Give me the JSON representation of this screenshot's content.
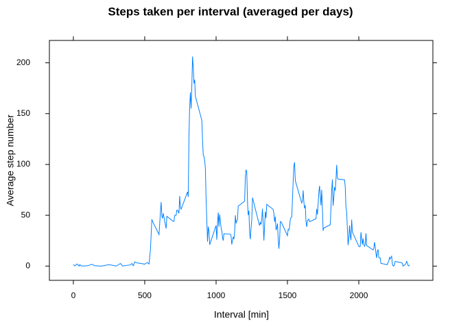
{
  "chart_data": {
    "type": "line",
    "title": "Steps taken per interval (averaged per days)",
    "x_label": "Interval [min]",
    "y_label": "Average step number",
    "color": "#0080ff",
    "x": [
      0,
      10,
      25,
      40,
      45,
      55,
      100,
      130,
      150,
      200,
      250,
      300,
      330,
      345,
      400,
      410,
      420,
      430,
      440,
      450,
      500,
      510,
      520,
      530,
      540,
      550,
      555,
      600,
      610,
      615,
      620,
      625,
      630,
      640,
      650,
      655,
      700,
      705,
      710,
      720,
      725,
      730,
      740,
      745,
      750,
      755,
      800,
      805,
      810,
      815,
      820,
      825,
      830,
      835,
      840,
      845,
      850,
      855,
      900,
      905,
      910,
      915,
      920,
      925,
      930,
      935,
      940,
      945,
      950,
      955,
      1000,
      1005,
      1010,
      1015,
      1020,
      1025,
      1030,
      1035,
      1040,
      1045,
      1050,
      1055,
      1100,
      1105,
      1110,
      1115,
      1120,
      1125,
      1130,
      1135,
      1140,
      1145,
      1150,
      1155,
      1200,
      1205,
      1210,
      1215,
      1220,
      1225,
      1230,
      1235,
      1240,
      1245,
      1250,
      1255,
      1300,
      1305,
      1310,
      1315,
      1320,
      1325,
      1330,
      1335,
      1340,
      1345,
      1350,
      1355,
      1400,
      1405,
      1410,
      1415,
      1420,
      1425,
      1430,
      1435,
      1440,
      1445,
      1450,
      1455,
      1500,
      1505,
      1510,
      1515,
      1520,
      1525,
      1530,
      1535,
      1540,
      1545,
      1550,
      1555,
      1600,
      1605,
      1610,
      1615,
      1620,
      1625,
      1630,
      1635,
      1640,
      1645,
      1650,
      1655,
      1700,
      1705,
      1710,
      1715,
      1720,
      1725,
      1730,
      1735,
      1740,
      1745,
      1750,
      1755,
      1800,
      1805,
      1810,
      1815,
      1820,
      1825,
      1830,
      1835,
      1840,
      1845,
      1850,
      1855,
      1900,
      1905,
      1910,
      1915,
      1920,
      1925,
      1930,
      1935,
      1940,
      1945,
      1950,
      1955,
      2000,
      2005,
      2010,
      2015,
      2020,
      2025,
      2030,
      2035,
      2040,
      2045,
      2050,
      2055,
      2100,
      2105,
      2110,
      2115,
      2120,
      2125,
      2130,
      2135,
      2140,
      2145,
      2150,
      2155,
      2200,
      2205,
      2210,
      2215,
      2220,
      2225,
      2230,
      2235,
      2240,
      2245,
      2250,
      2255,
      2300,
      2305,
      2310,
      2315,
      2320,
      2325,
      2330,
      2335,
      2340,
      2345,
      2350,
      2355
    ],
    "values": [
      1.7,
      0.1,
      2.1,
      0,
      1.5,
      0.1,
      0.3,
      1.8,
      0.3,
      0,
      1.5,
      0,
      2.6,
      0.1,
      1.2,
      2.6,
      0.3,
      4.1,
      3.5,
      3.1,
      1.9,
      3,
      3.3,
      2.1,
      16,
      46,
      44,
      31,
      53,
      63,
      49,
      47,
      52,
      44,
      37,
      49,
      44,
      44,
      50,
      50,
      55,
      55,
      52,
      69,
      58,
      56,
      73,
      68,
      129,
      157,
      171,
      155,
      177,
      206.2,
      195.9,
      179.6,
      183.4,
      167,
      143.5,
      124,
      109,
      108,
      103.7,
      96,
      66,
      45,
      24,
      38.8,
      35,
      21,
      40,
      26,
      42,
      52.7,
      38.9,
      50.8,
      44.3,
      37.4,
      34.7,
      28.3,
      25.1,
      31.9,
      31.4,
      29.7,
      21.3,
      25.5,
      28.4,
      26.5,
      33.4,
      50,
      42,
      44.6,
      46,
      59,
      63.9,
      87.7,
      94.8,
      92.8,
      63.4,
      50.2,
      54.5,
      32.4,
      26.5,
      37.7,
      45.1,
      67.3,
      42.3,
      39.9,
      43.3,
      41,
      46.2,
      56.4,
      42.8,
      25.1,
      40,
      53.5,
      47.3,
      60.8,
      55.8,
      52,
      43.6,
      48.7,
      35.5,
      37.5,
      41.8,
      27.5,
      17.1,
      26.1,
      43.6,
      43.8,
      30,
      36.1,
      35.5,
      38.8,
      46,
      47.8,
      48.1,
      65.3,
      82.9,
      98.7,
      102.1,
      84,
      62.1,
      64.1,
      74.5,
      63.2,
      56.9,
      59.8,
      43.9,
      38.6,
      44.7,
      45.5,
      46.2,
      43.7,
      46.6,
      56.3,
      50.7,
      61.2,
      72.7,
      78.9,
      68.9,
      59.7,
      75.1,
      56.5,
      34.8,
      37.5,
      40.7,
      58,
      74.7,
      85.3,
      59.3,
      67.8,
      77.7,
      74.2,
      85.3,
      99.5,
      86.6,
      85.6,
      84.9,
      77.8,
      58,
      53.4,
      36.3,
      20.7,
      27.4,
      40,
      30.2,
      25.5,
      45.7,
      33.5,
      19.6,
      19,
      19.3,
      33.3,
      26.8,
      21.2,
      27.3,
      21.3,
      19.5,
      21.3,
      32.3,
      20.2,
      15.9,
      17.2,
      23.5,
      19.2,
      12.5,
      8,
      14.7,
      16.3,
      8.7,
      7.8,
      8.1,
      2.6,
      1.5,
      3.7,
      4.8,
      8.5,
      7.1,
      8.7,
      9.8,
      2.2,
      0.3,
      0.1,
      1.6,
      4.6,
      3.3,
      2.8,
      0,
      0.8,
      1,
      1.6,
      2.6,
      4.7,
      3.3,
      0.6,
      0.2,
      1.1
    ],
    "xlim": [
      -168,
      2519
    ],
    "xticks": [
      0,
      500,
      1000,
      1500,
      2000
    ],
    "ylim": [
      -14,
      222
    ],
    "yticks": [
      0,
      50,
      100,
      150,
      200
    ]
  }
}
